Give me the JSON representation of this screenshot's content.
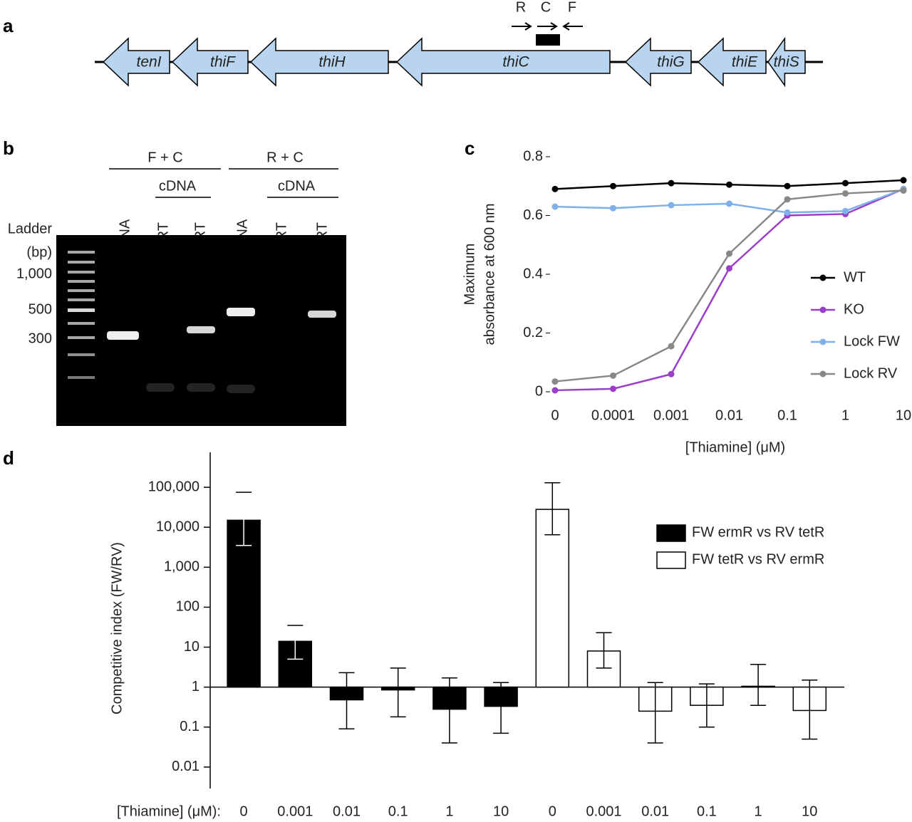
{
  "panels": [
    "a",
    "b",
    "c",
    "d"
  ],
  "gene_map": {
    "genes": [
      "tenI",
      "thiF",
      "thiH",
      "thiC",
      "thiG",
      "thiE",
      "thiS"
    ],
    "primers": [
      "R",
      "C",
      "F"
    ]
  },
  "gel": {
    "groups": [
      "F + C",
      "R + C"
    ],
    "subgroups": [
      "cDNA",
      "cDNA"
    ],
    "lanes": [
      "DNA",
      "−RT",
      "+RT",
      "DNA",
      "−RT",
      "+RT"
    ],
    "ladder_title": [
      "Ladder",
      "(bp)"
    ],
    "ladder_sizes": [
      "1,000",
      "500",
      "300"
    ]
  },
  "chart_data": [
    {
      "type": "line",
      "ylabel": [
        "Maximum",
        "absorbance at 600 nm"
      ],
      "xlabel": "[Thiamine] (μM)",
      "categories": [
        "0",
        "0.0001",
        "0.001",
        "0.01",
        "0.1",
        "1",
        "10"
      ],
      "ylim": [
        0,
        0.8
      ],
      "yticks": [
        0,
        0.2,
        0.4,
        0.6,
        0.8
      ],
      "series": [
        {
          "name": "WT",
          "color": "#000000",
          "values": [
            0.69,
            0.7,
            0.71,
            0.705,
            0.7,
            0.71,
            0.72
          ]
        },
        {
          "name": "KO",
          "color": "#9b3fc9",
          "values": [
            0.005,
            0.01,
            0.06,
            0.42,
            0.6,
            0.605,
            0.69
          ]
        },
        {
          "name": "Lock FW",
          "color": "#7fb0ea",
          "values": [
            0.63,
            0.625,
            0.635,
            0.64,
            0.61,
            0.615,
            0.69
          ]
        },
        {
          "name": "Lock RV",
          "color": "#888888",
          "values": [
            0.035,
            0.055,
            0.155,
            0.47,
            0.655,
            0.675,
            0.685
          ]
        }
      ]
    },
    {
      "type": "bar",
      "ylabel": "Competitive index (FW/RV)",
      "xlabel": "[Thiamine] (μM):",
      "log_scale": true,
      "categories": [
        "0",
        "0.001",
        "0.01",
        "0.1",
        "1",
        "10",
        "0",
        "0.001",
        "0.01",
        "0.1",
        "1",
        "10"
      ],
      "ylim": [
        0.0029,
        750000
      ],
      "yticks": [
        0.01,
        0.1,
        1,
        10,
        100,
        {
          "value": 1000,
          "label": "1,000"
        },
        {
          "value": 10000,
          "label": "10,000"
        },
        {
          "value": 100000,
          "label": "100,000"
        }
      ],
      "series": [
        {
          "name": "FW ermR vs RV tetR",
          "color": "#000000",
          "values": [
            15000,
            14,
            0.48,
            0.85,
            0.28,
            0.33,
            null,
            null,
            null,
            null,
            null,
            null
          ],
          "error_low": [
            3500,
            5,
            0.09,
            0.18,
            0.04,
            0.07,
            null,
            null,
            null,
            null,
            null,
            null
          ],
          "error_high": [
            75000,
            35,
            2.3,
            3,
            1.7,
            1.3,
            null,
            null,
            null,
            null,
            null,
            null
          ]
        },
        {
          "name": "FW tetR vs RV ermR",
          "color": "#ffffff",
          "values": [
            null,
            null,
            null,
            null,
            null,
            null,
            28000,
            8,
            0.25,
            0.35,
            1.05,
            0.26
          ],
          "error_low": [
            null,
            null,
            null,
            null,
            null,
            null,
            6500,
            3,
            0.04,
            0.1,
            0.35,
            0.05
          ],
          "error_high": [
            null,
            null,
            null,
            null,
            null,
            null,
            130000,
            23,
            1.3,
            1.2,
            3.7,
            1.5
          ]
        }
      ]
    }
  ]
}
